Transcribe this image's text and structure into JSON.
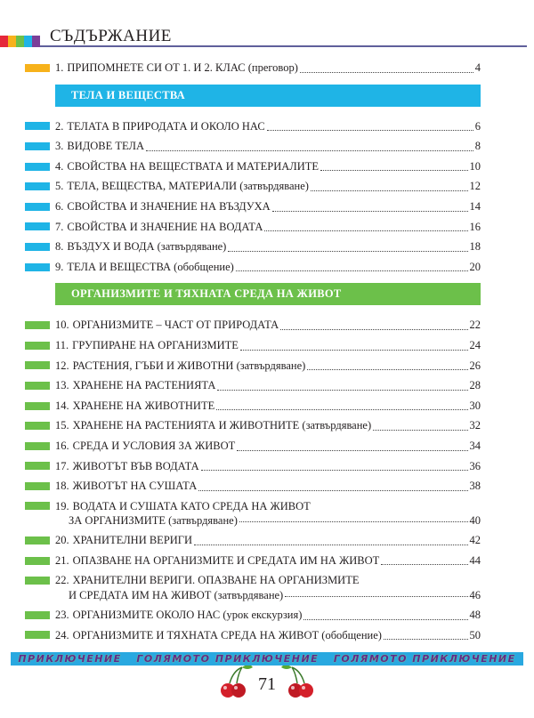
{
  "header": {
    "title": "СЪДЪРЖАНИЕ"
  },
  "intro": {
    "number": "1.",
    "lines": [
      "ПРИПОМНЕТЕ СИ ОТ 1. И 2. КЛАС (преговор)"
    ],
    "page": 4
  },
  "sections": [
    {
      "heading": "ТЕЛА И ВЕЩЕСТВА",
      "entries": [
        {
          "number": "2.",
          "lines": [
            "ТЕЛАТА В ПРИРОДАТА И ОКОЛО НАС"
          ],
          "page": 6
        },
        {
          "number": "3.",
          "lines": [
            "ВИДОВЕ ТЕЛА"
          ],
          "page": 8
        },
        {
          "number": "4.",
          "lines": [
            "СВОЙСТВА НА ВЕЩЕСТВАТА И МАТЕРИАЛИТЕ"
          ],
          "page": 10
        },
        {
          "number": "5.",
          "lines": [
            "ТЕЛА, ВЕЩЕСТВА, МАТЕРИАЛИ (затвърдяване)"
          ],
          "page": 12
        },
        {
          "number": "6.",
          "lines": [
            "СВОЙСТВА И ЗНАЧЕНИЕ НА ВЪЗДУХА"
          ],
          "page": 14
        },
        {
          "number": "7.",
          "lines": [
            "СВОЙСТВА И ЗНАЧЕНИЕ НА ВОДАТА"
          ],
          "page": 16
        },
        {
          "number": "8.",
          "lines": [
            "ВЪЗДУХ И ВОДА (затвърдяване)"
          ],
          "page": 18
        },
        {
          "number": "9.",
          "lines": [
            "ТЕЛА И ВЕЩЕСТВА (обобщение)"
          ],
          "page": 20
        }
      ]
    },
    {
      "heading": "ОРГАНИЗМИТЕ И ТЯХНАТА СРЕДА НА ЖИВОТ",
      "entries": [
        {
          "number": "10.",
          "lines": [
            "ОРГАНИЗМИТЕ – ЧАСТ ОТ ПРИРОДАТА"
          ],
          "page": 22
        },
        {
          "number": "11.",
          "lines": [
            "ГРУПИРАНЕ НА ОРГАНИЗМИТЕ"
          ],
          "page": 24
        },
        {
          "number": "12.",
          "lines": [
            "РАСТЕНИЯ, ГЪБИ И ЖИВОТНИ (затвърдяване)"
          ],
          "page": 26
        },
        {
          "number": "13.",
          "lines": [
            "ХРАНЕНЕ НА РАСТЕНИЯТА"
          ],
          "page": 28
        },
        {
          "number": "14.",
          "lines": [
            "ХРАНЕНЕ НА ЖИВОТНИТЕ"
          ],
          "page": 30
        },
        {
          "number": "15.",
          "lines": [
            "ХРАНЕНЕ НА РАСТЕНИЯТА И ЖИВОТНИТЕ (затвърдяване)"
          ],
          "page": 32
        },
        {
          "number": "16.",
          "lines": [
            "СРЕДА И УСЛОВИЯ ЗА ЖИВОТ"
          ],
          "page": 34
        },
        {
          "number": "17.",
          "lines": [
            "ЖИВОТЪТ ВЪВ ВОДАТА"
          ],
          "page": 36
        },
        {
          "number": "18.",
          "lines": [
            "ЖИВОТЪТ НА СУШАТА"
          ],
          "page": 38
        },
        {
          "number": "19.",
          "lines": [
            "ВОДАТА И СУШАТА КАТО СРЕДА НА ЖИВОТ",
            "ЗА ОРГАНИЗМИТЕ (затвърдяване)"
          ],
          "page": 40
        },
        {
          "number": "20.",
          "lines": [
            "ХРАНИТЕЛНИ ВЕРИГИ"
          ],
          "page": 42
        },
        {
          "number": "21.",
          "lines": [
            "ОПАЗВАНЕ НА ОРГАНИЗМИТЕ И СРЕДАТА ИМ НА ЖИВОТ"
          ],
          "page": 44
        },
        {
          "number": "22.",
          "lines": [
            "ХРАНИТЕЛНИ ВЕРИГИ. ОПАЗВАНЕ НА ОРГАНИЗМИТЕ",
            "И СРЕДАТА ИМ НА ЖИВОТ (затвърдяване)"
          ],
          "page": 46
        },
        {
          "number": "23.",
          "lines": [
            "ОРГАНИЗМИТЕ ОКОЛО НАС (урок екскурзия)"
          ],
          "page": 48
        },
        {
          "number": "24.",
          "lines": [
            "ОРГАНИЗМИТЕ И ТЯХНАТА СРЕДА НА ЖИВОТ (обобщение)"
          ],
          "page": 50
        }
      ]
    }
  ],
  "footer": {
    "banner": [
      "ПРИКЛЮЧЕНИЕ",
      "ГОЛЯМОТО ПРИКЛЮЧЕНИЕ",
      "ГОЛЯМОТО ПРИКЛЮЧЕНИЕ"
    ],
    "page_number": 71
  }
}
